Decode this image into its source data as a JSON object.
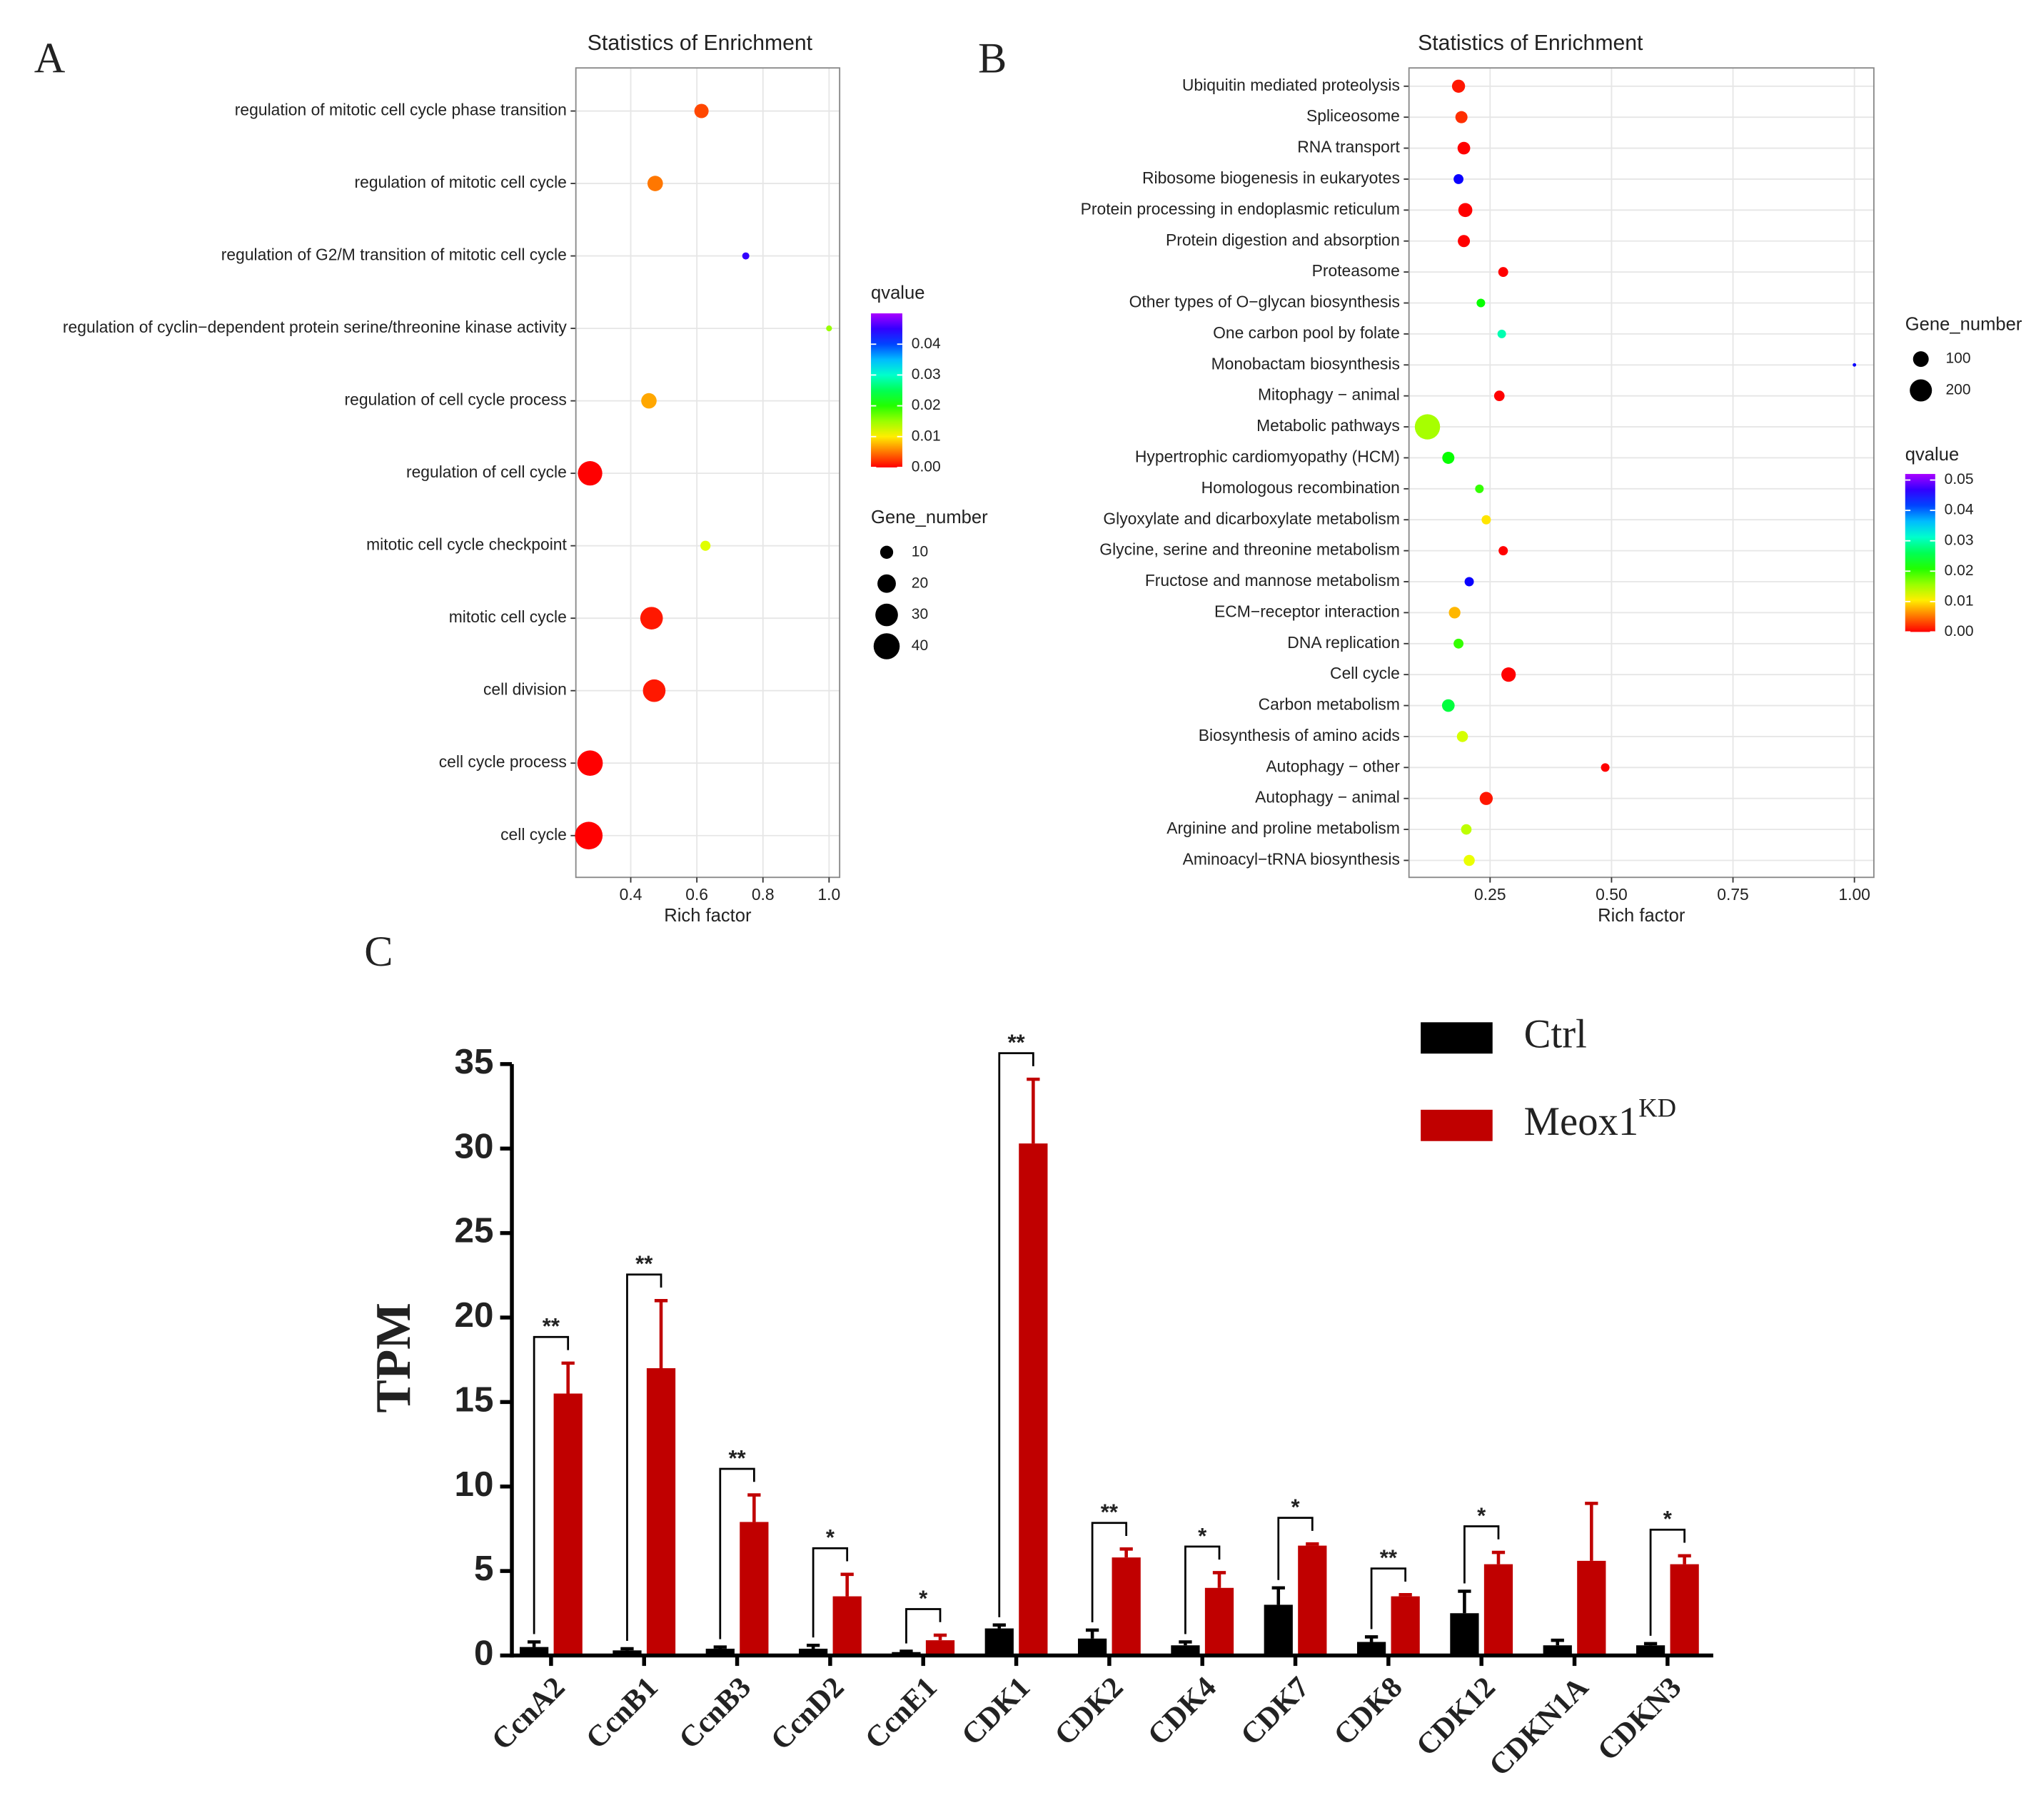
{
  "chart_data": [
    {
      "type": "dot",
      "panel": "A",
      "title": "Statistics of Enrichment",
      "xlabel": "Rich factor",
      "categories": [
        "regulation of mitotic cell cycle phase transition",
        "regulation of mitotic cell cycle",
        "regulation of G2/M transition of mitotic cell cycle",
        "regulation of cyclin−dependent protein serine/threonine kinase activity",
        "regulation of cell cycle process",
        "regulation of cell cycle",
        "mitotic cell cycle checkpoint",
        "mitotic cell cycle",
        "cell division",
        "cell cycle process",
        "cell cycle"
      ],
      "values": [
        0.614,
        0.474,
        0.748,
        1.0,
        0.455,
        0.277,
        0.626,
        0.463,
        0.471,
        0.277,
        0.273
      ],
      "sizes": [
        12,
        14,
        3,
        2,
        14,
        35,
        6,
        30,
        30,
        38,
        45
      ],
      "qvalues": [
        0.003,
        0.005,
        0.045,
        0.015,
        0.007,
        0.0,
        0.012,
        0.001,
        0.001,
        0.0,
        0.0
      ],
      "xlim": [
        0.234,
        1.032
      ],
      "xticks": [
        0.4,
        0.6,
        0.8,
        {
          "value": 1,
          "label": "1.0"
        }
      ],
      "grid": true,
      "colormap": "rainbow",
      "color_legend": {
        "title": "qvalue",
        "lim": [
          0,
          0.05
        ],
        "ticks": [
          {
            "value": 0,
            "label": "0.00"
          },
          {
            "value": 0.01,
            "label": "0.01"
          },
          {
            "value": 0.02,
            "label": "0.02"
          },
          {
            "value": 0.03,
            "label": "0.03"
          },
          {
            "value": 0.04,
            "label": "0.04"
          }
        ]
      },
      "size_legend": {
        "title": "Gene_number",
        "ticks": [
          10,
          20,
          30,
          40
        ]
      }
    },
    {
      "type": "dot",
      "panel": "B",
      "title": "Statistics of Enrichment",
      "xlabel": "Rich factor",
      "categories": [
        "Ubiquitin mediated proteolysis",
        "Spliceosome",
        "RNA transport",
        "Ribosome biogenesis in eukaryotes",
        "Protein processing in endoplasmic reticulum",
        "Protein digestion and absorption",
        "Proteasome",
        "Other types of O−glycan biosynthesis",
        "One carbon pool by folate",
        "Monobactam biosynthesis",
        "Mitophagy − animal",
        "Metabolic pathways",
        "Hypertrophic cardiomyopathy (HCM)",
        "Homologous recombination",
        "Glyoxylate and dicarboxylate metabolism",
        "Glycine, serine and threonine metabolism",
        "Fructose and mannose metabolism",
        "ECM−receptor interaction",
        "DNA replication",
        "Cell cycle",
        "Carbon metabolism",
        "Biosynthesis of amino acids",
        "Autophagy − other",
        "Autophagy − animal",
        "Arginine and proline metabolism",
        "Aminoacyl−tRNA biosynthesis"
      ],
      "values": [
        0.185,
        0.191,
        0.196,
        0.185,
        0.199,
        0.196,
        0.277,
        0.231,
        0.274,
        1.0,
        0.269,
        0.121,
        0.164,
        0.228,
        0.242,
        0.277,
        0.207,
        0.177,
        0.185,
        0.288,
        0.164,
        0.193,
        0.487,
        0.242,
        0.201,
        0.207
      ],
      "sizes": [
        70,
        60,
        65,
        40,
        80,
        60,
        40,
        30,
        30,
        5,
        45,
        260,
        60,
        30,
        35,
        35,
        35,
        55,
        40,
        85,
        65,
        50,
        30,
        70,
        45,
        50
      ],
      "qvalues": [
        0.001,
        0.002,
        0.0,
        0.045,
        0.0,
        0.0,
        0.0,
        0.022,
        0.03,
        0.045,
        0.0,
        0.015,
        0.022,
        0.02,
        0.01,
        0.0,
        0.045,
        0.008,
        0.02,
        0.0,
        0.025,
        0.013,
        0.0,
        0.001,
        0.014,
        0.012
      ],
      "xlim": [
        0.083,
        1.04
      ],
      "xticks": [
        0.25,
        {
          "value": 0.5,
          "label": "0.50"
        },
        0.75,
        {
          "value": 1,
          "label": "1.00"
        }
      ],
      "grid": true,
      "colormap": "rainbow",
      "color_legend": {
        "title": "qvalue",
        "lim": [
          0,
          0.052
        ],
        "ticks": [
          {
            "value": 0,
            "label": "0.00"
          },
          {
            "value": 0.01,
            "label": "0.01"
          },
          {
            "value": 0.02,
            "label": "0.02"
          },
          {
            "value": 0.03,
            "label": "0.03"
          },
          {
            "value": 0.04,
            "label": "0.04"
          },
          {
            "value": 0.05,
            "label": "0.05"
          }
        ]
      },
      "size_legend": {
        "title": "Gene_number",
        "ticks": [
          100,
          200
        ]
      }
    },
    {
      "type": "bar",
      "panel": "C",
      "ylabel": "TPM",
      "categories": [
        "CcnA2",
        "CcnB1",
        "CcnB3",
        "CcnD2",
        "CcnE1",
        "CDK1",
        "CDK2",
        "CDK4",
        "CDK7",
        "CDK8",
        "CDK12",
        "CDKN1A",
        "CDKN3"
      ],
      "series": [
        {
          "name": "Ctrl",
          "color": "#000000",
          "values": [
            0.5,
            0.3,
            0.4,
            0.4,
            0.2,
            1.6,
            1.0,
            0.6,
            3.0,
            0.8,
            2.5,
            0.6,
            0.6
          ],
          "errors": [
            0.3,
            0.1,
            0.1,
            0.2,
            0.05,
            0.2,
            0.5,
            0.2,
            1.0,
            0.3,
            1.3,
            0.3,
            0.1
          ]
        },
        {
          "name": "Meox1",
          "superscript": "KD",
          "color": "#c00000",
          "values": [
            15.5,
            17.0,
            7.9,
            3.5,
            0.9,
            30.3,
            5.8,
            4.0,
            6.5,
            3.5,
            5.4,
            5.6,
            5.4
          ],
          "errors": [
            1.8,
            4.0,
            1.6,
            1.3,
            0.3,
            3.8,
            0.5,
            0.9,
            0.1,
            0.1,
            0.7,
            3.4,
            0.5
          ]
        }
      ],
      "annotations": [
        "**",
        "**",
        "**",
        "*",
        "*",
        "**",
        "**",
        "*",
        "*",
        "**",
        "*",
        null,
        "*"
      ],
      "ylim": [
        0,
        35
      ],
      "yticks": [
        0,
        5,
        10,
        15,
        20,
        25,
        30,
        35
      ]
    }
  ]
}
